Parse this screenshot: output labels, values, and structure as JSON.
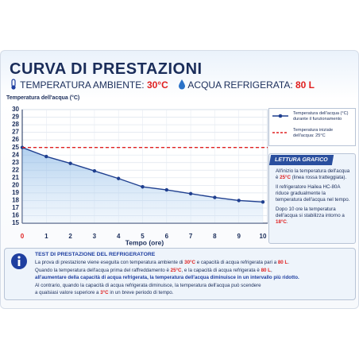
{
  "chart_data": {
    "type": "line",
    "title": "CURVA DI PRESTAZIONI",
    "conditions": [
      {
        "label": "TEMPERATURA AMBIENTE: ",
        "value": "30°C"
      },
      {
        "label": "ACQUA REFRIGERATA: ",
        "value": "80 L"
      }
    ],
    "y_label": "Temperatura dell'acqua (°C)",
    "x_label": "Tempo (ore)",
    "x": [
      0,
      1,
      2,
      3,
      4,
      5,
      6,
      7,
      8,
      9,
      10
    ],
    "series": [
      {
        "name": "Temperatura dell'acqua (°C) durante il funzionamento",
        "color": "#1f3f8f",
        "values": [
          25,
          23.8,
          22.9,
          21.9,
          20.9,
          19.8,
          19.4,
          18.9,
          18.4,
          18.0,
          17.8
        ]
      }
    ],
    "reference": {
      "name": "Temperatura iniziale dell'acqua: 25°C",
      "value": 25,
      "color": "#e02020"
    },
    "xlim": [
      0,
      10
    ],
    "xticks": [
      0,
      1,
      2,
      3,
      4,
      5,
      6,
      7,
      8,
      9,
      10
    ],
    "ylim": [
      15,
      30
    ],
    "yticks": [
      15,
      16,
      17,
      18,
      19,
      20,
      21,
      22,
      23,
      24,
      25,
      26,
      27,
      28,
      29,
      30
    ],
    "grid": true
  },
  "sidebar": {
    "title": "LETTURA GRAFICO",
    "paragraphs": [
      [
        {
          "text": "All'inizio la temperatura dell'acqua è "
        },
        {
          "text": "25°C",
          "style": "red"
        },
        {
          "text": " (linea rossa tratteggiata)."
        }
      ],
      [
        {
          "text": "Il refrigeratore Hailea HC-80A riduce gradualmente la temperatura dell'acqua nel tempo."
        }
      ],
      [
        {
          "text": "Dopo 10 ore la temperatura dell'acqua si stabilizza intorno a "
        },
        {
          "text": "18°C",
          "style": "red"
        },
        {
          "text": "."
        }
      ]
    ]
  },
  "info": {
    "title": "TEST DI PRESTAZIONE DEL REFRIGERATORE",
    "lines": [
      [
        {
          "text": "La prova di prestazione viene eseguita con temperatura ambiente di "
        },
        {
          "text": "30°C",
          "style": "red"
        },
        {
          "text": " e capacità di acqua refrigerata pari a "
        },
        {
          "text": "80 L",
          "style": "red"
        },
        {
          "text": "."
        }
      ],
      [
        {
          "text": "Quando la temperatura dell'acqua prima del raffreddamento è "
        },
        {
          "text": "25°C",
          "style": "red"
        },
        {
          "text": ", e la capacità di acqua refrigerata è "
        },
        {
          "text": "80 L",
          "style": "red"
        },
        {
          "text": ","
        }
      ],
      [
        {
          "text": "all'aumentare della capacità di acqua refrigerata, la temperatura dell'acqua diminuisce in un intervallo più ridotto.",
          "style": "blue"
        }
      ],
      [
        {
          "text": "Al contrario, quando la capacità di acqua refrigerata diminuisce, la temperatura dell'acqua può scendere"
        }
      ],
      [
        {
          "text": "a qualsiasi valore superiore a "
        },
        {
          "text": "3°C",
          "style": "red"
        },
        {
          "text": " in un breve periodo di tempo."
        }
      ]
    ]
  }
}
